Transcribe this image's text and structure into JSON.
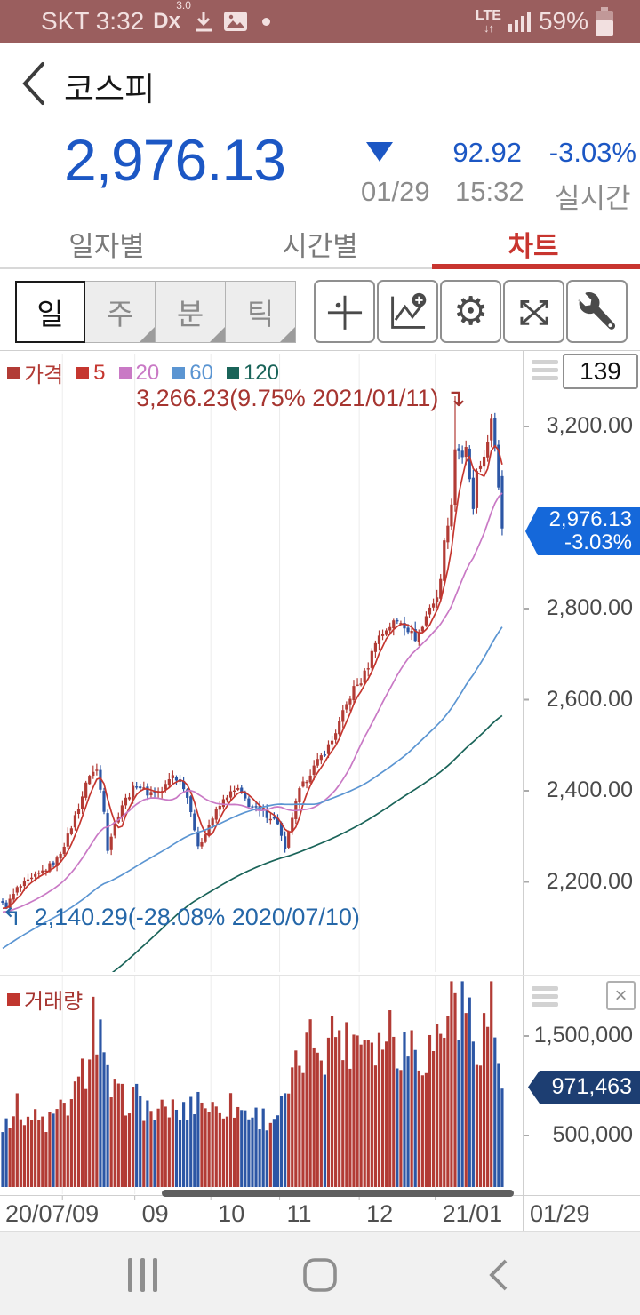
{
  "status_bar": {
    "carrier_time": "SKT 3:32",
    "dx_label": "Dx",
    "dx_version": "3.0",
    "network": "LTE",
    "network_arrows": "↓↑",
    "battery_pct": "59%"
  },
  "header": {
    "title": "코스피"
  },
  "quote": {
    "price": "2,976.13",
    "direction": "▼",
    "change": "92.92",
    "change_pct": "-3.03%",
    "date": "01/29",
    "time": "15:32",
    "realtime_label": "실시간"
  },
  "tabs": {
    "items": [
      {
        "label": "일자별",
        "active": false
      },
      {
        "label": "시간별",
        "active": false
      },
      {
        "label": "차트",
        "active": true
      }
    ]
  },
  "toolbar": {
    "periods": [
      {
        "label": "일",
        "active": true
      },
      {
        "label": "주",
        "active": false
      },
      {
        "label": "분",
        "active": false
      },
      {
        "label": "틱",
        "active": false
      }
    ],
    "icons": [
      "crosshair",
      "add-indicator",
      "settings",
      "expand",
      "tools"
    ]
  },
  "chart": {
    "legend": [
      {
        "label": "가격",
        "color": "#b23b35"
      },
      {
        "label": "5",
        "color": "#c5362f"
      },
      {
        "label": "20",
        "color": "#c979c5"
      },
      {
        "label": "60",
        "color": "#5b95d2"
      },
      {
        "label": "120",
        "color": "#1a6459"
      }
    ],
    "count": "139",
    "high_annotation": "3,266.23(9.75% 2021/01/11)",
    "high_arrow": "↴",
    "low_annotation": "2,140.29(-28.08% 2020/07/10)",
    "low_arrow": "↰",
    "price_badge": {
      "line1": "2,976.13",
      "line2": "-3.03%"
    },
    "volume_label": "거래량",
    "volume_legend_color": "#c0362f",
    "volume_badge": "971,463",
    "close_icon": "×"
  },
  "chart_data": {
    "type": "candlestick",
    "title": "코스피 일봉 차트",
    "bars_visible": 139,
    "first_date": "2020/07/09",
    "last_date": "2021/01/29",
    "last_open": 3091,
    "last_high": 3104,
    "last_low": 2961,
    "last_close": 2976.13,
    "last_volume": 971463,
    "price_ticks": [
      {
        "value": 3200,
        "label": "3,200.00"
      },
      {
        "value": 2800,
        "label": "2,800.00"
      },
      {
        "value": 2600,
        "label": "2,600.00"
      },
      {
        "value": 2400,
        "label": "2,400.00"
      },
      {
        "value": 2200,
        "label": "2,200.00"
      }
    ],
    "volume_ticks": [
      {
        "value": 1500000,
        "label": "1,500,000"
      },
      {
        "value": 500000,
        "label": "500,000"
      }
    ],
    "high_marker": {
      "bar": 125,
      "value": 3266.23,
      "pct": "9.75%",
      "date": "2021/01/11"
    },
    "low_marker": {
      "bar": 1,
      "value": 2140.29,
      "pct": "-28.08%",
      "date": "2020/07/10"
    },
    "months": [
      {
        "bar": 17,
        "label": ""
      },
      {
        "bar": 37,
        "label": "09"
      },
      {
        "bar": 58,
        "label": "10"
      },
      {
        "bar": 77,
        "label": "11"
      },
      {
        "bar": 99,
        "label": "12"
      },
      {
        "bar": 120,
        "label": "21/01"
      }
    ],
    "x_first_label": "20/07/09",
    "x_right_label": "01/29",
    "close_waypoints": [
      [
        0,
        2150
      ],
      [
        1,
        2146
      ],
      [
        4,
        2185
      ],
      [
        8,
        2205
      ],
      [
        13,
        2235
      ],
      [
        15,
        2249
      ],
      [
        18,
        2300
      ],
      [
        21,
        2365
      ],
      [
        24,
        2437
      ],
      [
        26,
        2445
      ],
      [
        28,
        2360
      ],
      [
        29,
        2274
      ],
      [
        31,
        2330
      ],
      [
        33,
        2370
      ],
      [
        37,
        2415
      ],
      [
        40,
        2395
      ],
      [
        44,
        2400
      ],
      [
        47,
        2435
      ],
      [
        50,
        2410
      ],
      [
        52,
        2360
      ],
      [
        54,
        2272
      ],
      [
        56,
        2310
      ],
      [
        59,
        2355
      ],
      [
        62,
        2390
      ],
      [
        65,
        2403
      ],
      [
        68,
        2370
      ],
      [
        71,
        2355
      ],
      [
        74,
        2343
      ],
      [
        76,
        2330
      ],
      [
        78,
        2267
      ],
      [
        80,
        2343
      ],
      [
        82,
        2400
      ],
      [
        85,
        2440
      ],
      [
        88,
        2475
      ],
      [
        91,
        2510
      ],
      [
        94,
        2570
      ],
      [
        97,
        2625
      ],
      [
        99,
        2640
      ],
      [
        101,
        2675
      ],
      [
        103,
        2731
      ],
      [
        106,
        2755
      ],
      [
        108,
        2770
      ],
      [
        110,
        2772
      ],
      [
        112,
        2755
      ],
      [
        114,
        2735
      ],
      [
        116,
        2760
      ],
      [
        118,
        2806
      ],
      [
        120,
        2820
      ],
      [
        121,
        2873
      ],
      [
        122,
        2944
      ],
      [
        123,
        2990
      ],
      [
        124,
        3031
      ],
      [
        125,
        3152
      ],
      [
        126,
        3148
      ],
      [
        127,
        3126
      ],
      [
        128,
        3149
      ],
      [
        129,
        3085
      ],
      [
        130,
        3013
      ],
      [
        131,
        3093
      ],
      [
        132,
        3115
      ],
      [
        133,
        3140
      ],
      [
        134,
        3161
      ],
      [
        135,
        3209
      ],
      [
        136,
        3160
      ],
      [
        137,
        3070
      ],
      [
        138,
        2976.13
      ]
    ],
    "prehistory_close_waypoints": [
      [
        -120,
        2100
      ],
      [
        -100,
        1800
      ],
      [
        -85,
        1550
      ],
      [
        -75,
        1500
      ],
      [
        -65,
        1720
      ],
      [
        -55,
        1900
      ],
      [
        -45,
        1990
      ],
      [
        -35,
        2060
      ],
      [
        -25,
        2110
      ],
      [
        -15,
        2130
      ],
      [
        -1,
        2140
      ]
    ],
    "volume_waypoints": [
      [
        0,
        650000
      ],
      [
        4,
        780000
      ],
      [
        8,
        680000
      ],
      [
        12,
        620000
      ],
      [
        16,
        740000
      ],
      [
        20,
        900000
      ],
      [
        23,
        1200000
      ],
      [
        25,
        1750000
      ],
      [
        26,
        1450000
      ],
      [
        27,
        1550000
      ],
      [
        28,
        1150000
      ],
      [
        30,
        950000
      ],
      [
        33,
        850000
      ],
      [
        36,
        900000
      ],
      [
        39,
        800000
      ],
      [
        43,
        700000
      ],
      [
        46,
        780000
      ],
      [
        50,
        720000
      ],
      [
        54,
        900000
      ],
      [
        58,
        760000
      ],
      [
        62,
        820000
      ],
      [
        66,
        760000
      ],
      [
        70,
        700000
      ],
      [
        74,
        660000
      ],
      [
        78,
        820000
      ],
      [
        80,
        1050000
      ],
      [
        83,
        1300000
      ],
      [
        86,
        1500000
      ],
      [
        89,
        1380000
      ],
      [
        92,
        1600000
      ],
      [
        95,
        1420000
      ],
      [
        98,
        1520000
      ],
      [
        101,
        1560000
      ],
      [
        104,
        1430000
      ],
      [
        107,
        1620000
      ],
      [
        110,
        1380000
      ],
      [
        113,
        1480000
      ],
      [
        116,
        1300000
      ],
      [
        119,
        1420000
      ],
      [
        121,
        1560000
      ],
      [
        123,
        1700000
      ],
      [
        125,
        2050000
      ],
      [
        126,
        1750000
      ],
      [
        128,
        1850000
      ],
      [
        130,
        1450000
      ],
      [
        132,
        1500000
      ],
      [
        134,
        1700000
      ],
      [
        135,
        2000000
      ],
      [
        136,
        1500000
      ],
      [
        137,
        1280000
      ],
      [
        138,
        971463
      ]
    ],
    "moving_averages": [
      {
        "period": 5,
        "color": "#c5362f"
      },
      {
        "period": 20,
        "color": "#c979c5"
      },
      {
        "period": 60,
        "color": "#5b95d2"
      },
      {
        "period": 120,
        "color": "#1a6459"
      }
    ],
    "colors": {
      "up": "#b23b35",
      "down": "#2c56a5",
      "grid": "#ececec",
      "scrollbar": "#5f5f5f"
    }
  }
}
